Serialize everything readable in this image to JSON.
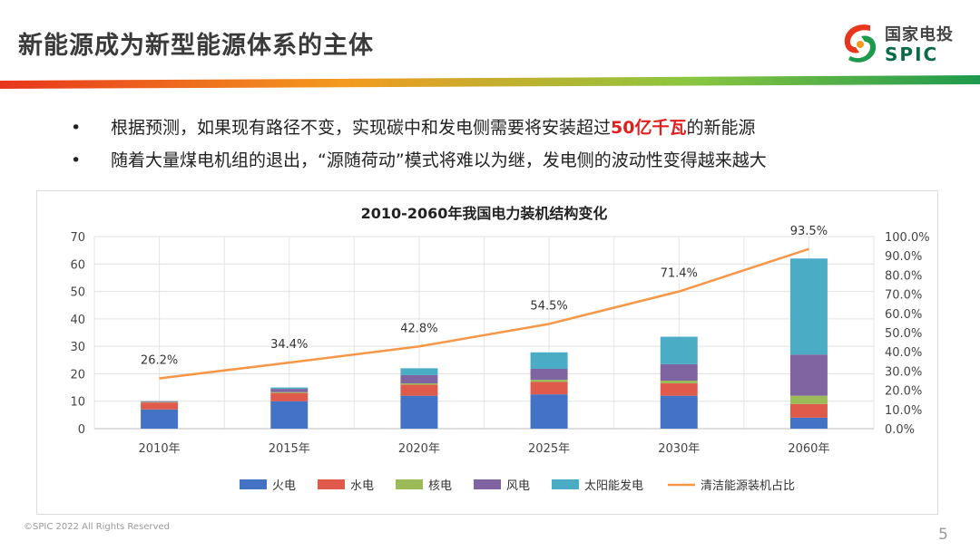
{
  "slide": {
    "title": "新能源成为新型能源体系的主体",
    "page_number": "5",
    "copyright": "©SPIC 2022 All Rights Reserved"
  },
  "logo": {
    "cn": "国家电投",
    "en": "SPIC"
  },
  "colors": {
    "accent_green": "#0a6b47",
    "accent_red": "#e0201d",
    "band_gradient": [
      "#e8361c",
      "#f39a1e",
      "#8cc63f",
      "#1e9a4e"
    ]
  },
  "bullets": [
    {
      "symbol": "•",
      "before": "根据预测，如果现有路径不变，实现碳中和发电侧需要将安装超过",
      "highlight": "50亿千瓦",
      "after": "的新能源"
    },
    {
      "symbol": "•",
      "before": "随着大量煤电机组的退出，“源随荷动”模式将难以为继，发电侧的波动性变得越来越大",
      "highlight": "",
      "after": ""
    }
  ],
  "chart_data": {
    "type": "bar",
    "stacked": true,
    "title": "2010-2060年我国电力装机结构变化",
    "categories": [
      "2010年",
      "2015年",
      "2020年",
      "2025年",
      "2030年",
      "2060年"
    ],
    "series": [
      {
        "name": "火电",
        "color": "#4472c4",
        "values": [
          7,
          10,
          12,
          12.5,
          12,
          4
        ]
      },
      {
        "name": "水电",
        "color": "#e05a4c",
        "values": [
          2.5,
          3,
          4,
          4.5,
          4.5,
          5
        ]
      },
      {
        "name": "核电",
        "color": "#9bbb59",
        "values": [
          0.2,
          0.3,
          0.5,
          0.8,
          1,
          3
        ]
      },
      {
        "name": "风电",
        "color": "#8064a2",
        "values": [
          0.3,
          1.2,
          3,
          4,
          6,
          15
        ]
      },
      {
        "name": "太阳能发电",
        "color": "#4bacc6",
        "values": [
          0,
          0.5,
          2.5,
          6,
          10,
          35
        ]
      }
    ],
    "line": {
      "name": "清洁能源装机占比",
      "color": "#f79646",
      "values": [
        26.2,
        34.4,
        42.8,
        54.5,
        71.4,
        93.5
      ],
      "labels": [
        "26.2%",
        "34.4%",
        "42.8%",
        "54.5%",
        "71.4%",
        "93.5%"
      ]
    },
    "y_left": {
      "min": 0,
      "max": 70,
      "ticks": [
        "0",
        "10",
        "20",
        "30",
        "40",
        "50",
        "60",
        "70"
      ]
    },
    "y_right": {
      "min": 0,
      "max": 100,
      "ticks": [
        "0.0%",
        "10.0%",
        "20.0%",
        "30.0%",
        "40.0%",
        "50.0%",
        "60.0%",
        "70.0%",
        "80.0%",
        "90.0%",
        "100.0%"
      ]
    },
    "grid": true,
    "legend_position": "bottom"
  }
}
